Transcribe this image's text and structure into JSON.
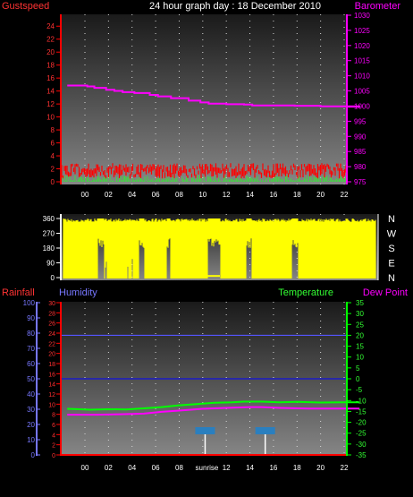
{
  "title": "24 hour graph day : 18 December 2010",
  "chart_data": [
    {
      "type": "line",
      "left_label": "Gustspeed",
      "right_label": "Barometer",
      "x_ticks": [
        "00",
        "02",
        "04",
        "06",
        "08",
        "10",
        "12",
        "14",
        "16",
        "18",
        "20",
        "22"
      ],
      "left_ticks": [
        "0",
        "2",
        "4",
        "6",
        "8",
        "10",
        "12",
        "14",
        "16",
        "18",
        "20",
        "22",
        "24"
      ],
      "right_ticks": [
        "975",
        "980",
        "985",
        "990",
        "995",
        "1000",
        "1005",
        "1010",
        "1015",
        "1020",
        "1025",
        "1030"
      ],
      "ylim_left": [
        0,
        25
      ],
      "ylim_right": [
        975,
        1030
      ],
      "xlim": [
        -1.5,
        23.3
      ],
      "series": [
        {
          "axis": "right",
          "color": "#ff00ff",
          "points": [
            [
              -1.5,
              1006.8
            ],
            [
              0.2,
              1006.5
            ],
            [
              0.8,
              1006.0
            ],
            [
              1.8,
              1005.4
            ],
            [
              2.5,
              1005.0
            ],
            [
              3.2,
              1004.6
            ],
            [
              4.2,
              1004.3
            ],
            [
              5.5,
              1003.7
            ],
            [
              6.2,
              1003.2
            ],
            [
              7.3,
              1002.6
            ],
            [
              8.8,
              1001.8
            ],
            [
              9.8,
              1001.2
            ],
            [
              10.5,
              1000.8
            ],
            [
              12.0,
              1000.6
            ],
            [
              13.5,
              1000.5
            ],
            [
              14.2,
              1000.2
            ],
            [
              16.0,
              1000.2
            ],
            [
              17.8,
              1000.1
            ],
            [
              20.0,
              999.9
            ],
            [
              23.3,
              999.8
            ]
          ]
        },
        {
          "axis": "left",
          "color": "#ff0000",
          "band": [
            0.5,
            2.5
          ]
        },
        {
          "axis": "left",
          "color": "#00cc00",
          "band": [
            0.0,
            1.0
          ]
        }
      ]
    },
    {
      "type": "area",
      "right_labels": [
        "N",
        "W",
        "S",
        "E",
        "N"
      ],
      "left_ticks": [
        "0",
        "90",
        "180",
        "270",
        "360"
      ],
      "ylim": [
        0,
        360
      ],
      "color": "#ffff00"
    },
    {
      "type": "line",
      "labels": {
        "rainfall": "Rainfall",
        "humidity": "Humidity",
        "temperature": "Temperature",
        "dewpoint": "Dew Point"
      },
      "x_ticks": [
        "00",
        "02",
        "04",
        "06",
        "08",
        "sunrise",
        "12",
        "14",
        "16",
        "18",
        "20",
        "22"
      ],
      "rain_ticks": [
        "0",
        "2",
        "4",
        "6",
        "8",
        "10",
        "12",
        "14",
        "16",
        "18",
        "20",
        "22",
        "24",
        "26",
        "28",
        "30"
      ],
      "humidity_ticks": [
        "0",
        "10",
        "20",
        "30",
        "40",
        "50",
        "60",
        "70",
        "80",
        "90",
        "100"
      ],
      "temp_ticks": [
        "-35",
        "-30",
        "-25",
        "-20",
        "-15",
        "-10",
        "-5",
        "0",
        "5",
        "10",
        "15",
        "20",
        "25",
        "30",
        "35"
      ],
      "ylim_temp": [
        -35,
        35
      ],
      "markers": [
        {
          "x": 10.2,
          "label": "sunrise"
        },
        {
          "x": 15.3,
          "label": ""
        }
      ],
      "series": [
        {
          "name": "Temperature",
          "color": "#00ff00",
          "points": [
            [
              -1.5,
              -13.8
            ],
            [
              0.5,
              -14.2
            ],
            [
              2.0,
              -14.0
            ],
            [
              3.5,
              -14.1
            ],
            [
              5.0,
              -13.6
            ],
            [
              6.5,
              -13.0
            ],
            [
              8.0,
              -12.2
            ],
            [
              9.5,
              -11.6
            ],
            [
              11.0,
              -11.0
            ],
            [
              12.5,
              -10.8
            ],
            [
              13.5,
              -10.5
            ],
            [
              15.0,
              -10.5
            ],
            [
              16.5,
              -10.8
            ],
            [
              18.0,
              -10.6
            ],
            [
              20.0,
              -10.9
            ],
            [
              22.0,
              -10.8
            ],
            [
              23.3,
              -10.8
            ]
          ]
        },
        {
          "name": "Dew Point",
          "color": "#ff00ff",
          "points": [
            [
              -1.5,
              -16.5
            ],
            [
              1.0,
              -16.5
            ],
            [
              3.0,
              -16.3
            ],
            [
              5.0,
              -16.0
            ],
            [
              6.5,
              -15.2
            ],
            [
              8.0,
              -14.6
            ],
            [
              10.0,
              -13.8
            ],
            [
              12.0,
              -13.4
            ],
            [
              14.0,
              -13.0
            ],
            [
              15.0,
              -13.0
            ],
            [
              16.5,
              -13.4
            ],
            [
              19.0,
              -13.7
            ],
            [
              21.0,
              -13.7
            ],
            [
              23.3,
              -13.7
            ]
          ]
        }
      ]
    }
  ]
}
